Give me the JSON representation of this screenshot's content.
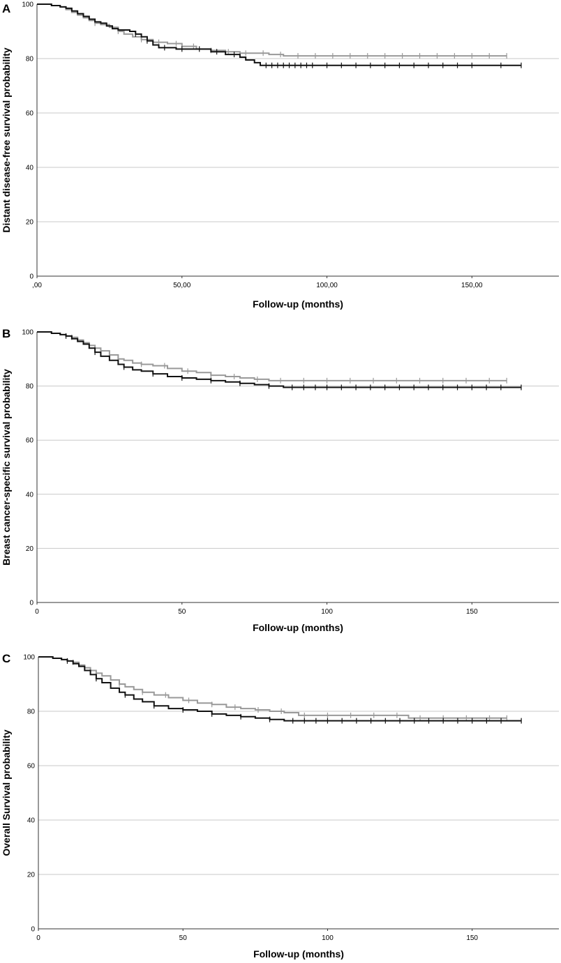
{
  "colors": {
    "series_black": "#111111",
    "series_gray": "#999999",
    "grid": "#c8c8c8",
    "axis": "#333333"
  },
  "chart_data": [
    {
      "type": "line",
      "panel": "A",
      "xlabel": "Follow-up (months)",
      "ylabel": "Distant disease-free survival probability",
      "xlim": [
        0,
        180
      ],
      "ylim": [
        0,
        100
      ],
      "x_ticks": [
        0,
        50,
        100,
        150
      ],
      "x_tick_labels": [
        ",00",
        "50,00",
        "100,00",
        "150,00"
      ],
      "y_ticks": [
        0,
        20,
        40,
        60,
        80,
        100
      ],
      "grid": "horizontal",
      "series": [
        {
          "color": "#111111",
          "x": [
            0,
            5,
            8,
            10,
            12,
            14,
            16,
            18,
            20,
            22,
            24,
            26,
            28,
            30,
            32,
            34,
            36,
            38,
            40,
            42,
            48,
            55,
            60,
            65,
            70,
            72,
            75,
            77,
            167
          ],
          "y": [
            100,
            99.5,
            99,
            98.5,
            97.5,
            96.5,
            95.5,
            94.5,
            93.5,
            93,
            92,
            91,
            90.5,
            90.5,
            90,
            89,
            88,
            86.5,
            85,
            84,
            83.5,
            83.5,
            82.5,
            81.5,
            80.5,
            79.5,
            78.5,
            77.5,
            77.5
          ],
          "censor_x": [
            34,
            38,
            44,
            50,
            56,
            62,
            68,
            79,
            81,
            83,
            85,
            87,
            89,
            91,
            93,
            95,
            100,
            105,
            110,
            115,
            120,
            125,
            130,
            135,
            140,
            145,
            150,
            160,
            167
          ]
        },
        {
          "color": "#999999",
          "x": [
            0,
            5,
            8,
            10,
            12,
            14,
            16,
            18,
            20,
            22,
            25,
            28,
            30,
            33,
            36,
            40,
            45,
            50,
            55,
            60,
            65,
            70,
            75,
            80,
            85,
            162
          ],
          "y": [
            100,
            99.5,
            99,
            98,
            97,
            96,
            95,
            94,
            93,
            92.5,
            91.5,
            90,
            89,
            88,
            87,
            86,
            85.5,
            84.5,
            83.5,
            83,
            82.5,
            82,
            82,
            81.5,
            81,
            81
          ],
          "censor_x": [
            20,
            28,
            36,
            42,
            48,
            54,
            60,
            66,
            72,
            78,
            84,
            90,
            96,
            102,
            108,
            114,
            120,
            126,
            132,
            138,
            144,
            150,
            156,
            162
          ]
        }
      ]
    },
    {
      "type": "line",
      "panel": "B",
      "xlabel": "Follow-up (months)",
      "ylabel": "Breast cancer-specific survival probability",
      "xlim": [
        0,
        180
      ],
      "ylim": [
        0,
        100
      ],
      "x_ticks": [
        0,
        50,
        100,
        150
      ],
      "x_tick_labels": [
        "0",
        "50",
        "100",
        "150"
      ],
      "y_ticks": [
        0,
        20,
        40,
        60,
        80,
        100
      ],
      "grid": "horizontal",
      "series": [
        {
          "color": "#111111",
          "x": [
            0,
            5,
            8,
            10,
            12,
            14,
            16,
            18,
            20,
            22,
            25,
            28,
            30,
            33,
            36,
            40,
            45,
            50,
            55,
            60,
            65,
            70,
            75,
            80,
            85,
            167
          ],
          "y": [
            100,
            99.5,
            99,
            98.5,
            97.5,
            96.5,
            95.5,
            94,
            92.5,
            91,
            89.5,
            88,
            87,
            86,
            85.5,
            84.5,
            83.5,
            83,
            82.5,
            82,
            81.5,
            81,
            80.5,
            80,
            79.5,
            79.5
          ],
          "censor_x": [
            10,
            20,
            30,
            40,
            50,
            60,
            70,
            80,
            88,
            92,
            96,
            100,
            105,
            110,
            115,
            120,
            125,
            130,
            135,
            140,
            145,
            150,
            155,
            160,
            167
          ]
        },
        {
          "color": "#999999",
          "x": [
            0,
            5,
            8,
            10,
            12,
            14,
            16,
            18,
            20,
            22,
            25,
            28,
            30,
            33,
            36,
            40,
            45,
            50,
            55,
            60,
            65,
            70,
            75,
            80,
            85,
            162
          ],
          "y": [
            100,
            99.5,
            99,
            98.5,
            98,
            97,
            96,
            95,
            94,
            93,
            91.5,
            90,
            89.5,
            88.5,
            88,
            87.5,
            86.5,
            85.5,
            85,
            84,
            83.5,
            83,
            82.5,
            82,
            82,
            82
          ],
          "censor_x": [
            12,
            20,
            28,
            36,
            44,
            52,
            60,
            68,
            76,
            84,
            92,
            100,
            108,
            116,
            124,
            132,
            140,
            148,
            156,
            162
          ]
        }
      ]
    },
    {
      "type": "line",
      "panel": "C",
      "xlabel": "Follow-up (months)",
      "ylabel": "Overall Survival probability",
      "xlim": [
        0,
        180
      ],
      "ylim": [
        0,
        100
      ],
      "x_ticks": [
        0,
        50,
        100,
        150
      ],
      "x_tick_labels": [
        "0",
        "50",
        "100",
        "150"
      ],
      "y_ticks": [
        0,
        20,
        40,
        60,
        80,
        100
      ],
      "grid": "horizontal",
      "series": [
        {
          "color": "#111111",
          "x": [
            0,
            5,
            8,
            10,
            12,
            14,
            16,
            18,
            20,
            22,
            25,
            28,
            30,
            33,
            36,
            40,
            45,
            50,
            55,
            60,
            65,
            70,
            75,
            80,
            85,
            167
          ],
          "y": [
            100,
            99.5,
            99,
            98.5,
            97.5,
            96.5,
            95,
            93.5,
            92,
            90.5,
            88.5,
            87,
            86,
            84.5,
            83.5,
            82,
            81,
            80.5,
            80,
            79,
            78.5,
            78,
            77.5,
            77,
            76.5,
            76.5
          ],
          "censor_x": [
            10,
            20,
            30,
            40,
            50,
            60,
            70,
            80,
            88,
            92,
            96,
            100,
            105,
            110,
            115,
            120,
            125,
            130,
            135,
            140,
            145,
            150,
            155,
            160,
            167
          ]
        },
        {
          "color": "#999999",
          "x": [
            0,
            5,
            8,
            10,
            12,
            14,
            16,
            18,
            20,
            22,
            25,
            28,
            30,
            33,
            36,
            40,
            45,
            50,
            55,
            60,
            65,
            70,
            75,
            80,
            85,
            90,
            100,
            110,
            125,
            128,
            162
          ],
          "y": [
            100,
            99.5,
            99,
            98.5,
            98,
            97,
            96,
            95,
            94,
            93,
            91.5,
            90,
            89,
            88,
            87,
            86,
            85,
            84,
            83,
            82.5,
            81.5,
            81,
            80.5,
            80,
            79.5,
            78.5,
            78.5,
            78.5,
            78.5,
            77.5,
            77.5
          ],
          "censor_x": [
            12,
            20,
            28,
            36,
            44,
            52,
            60,
            68,
            76,
            84,
            92,
            100,
            108,
            116,
            124,
            132,
            140,
            148,
            156,
            162
          ]
        }
      ]
    }
  ]
}
